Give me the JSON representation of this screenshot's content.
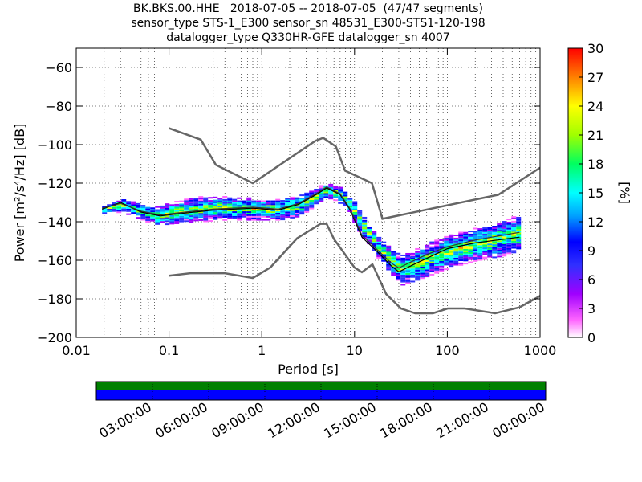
{
  "title": {
    "line1": "BK.BKS.00.HHE   2018-07-05 -- 2018-07-05  (47/47 segments)",
    "line2": "sensor_type STS-1_E300 sensor_sn 48531_E300-STS1-120-198",
    "line3": "datalogger_type Q330HR-GFE datalogger_sn 4007"
  },
  "chart_data": {
    "type": "heatmap",
    "xlabel": "Period [s]",
    "ylabel": "Power [m²/s⁴/Hz] [dB]",
    "xscale": "log",
    "xlim": [
      0.01,
      1000
    ],
    "ylim": [
      -200,
      -50
    ],
    "x_ticks": [
      0.01,
      0.1,
      1,
      10,
      100,
      1000
    ],
    "x_tick_labels": [
      "0.01",
      "0.1",
      "1",
      "10",
      "100",
      "1000"
    ],
    "y_ticks": [
      -200,
      -180,
      -160,
      -140,
      -120,
      -100,
      -80,
      -60
    ],
    "y_tick_labels": [
      "−200",
      "−180",
      "−160",
      "−140",
      "−120",
      "−100",
      "−80",
      "−60"
    ],
    "grid": true,
    "colorbar": {
      "label": "[%]",
      "min": 0,
      "max": 30,
      "ticks": [
        "0",
        "3",
        "6",
        "9",
        "12",
        "15",
        "18",
        "21",
        "24",
        "27",
        "30"
      ]
    },
    "series": [
      {
        "name": "NHNM",
        "color": "#666666",
        "points": [
          [
            0.1,
            -91.5
          ],
          [
            0.22,
            -97.4
          ],
          [
            0.32,
            -110.5
          ],
          [
            0.8,
            -120
          ],
          [
            3.8,
            -98
          ],
          [
            4.6,
            -96.5
          ],
          [
            6.3,
            -101
          ],
          [
            7.9,
            -113.5
          ],
          [
            15.4,
            -120
          ],
          [
            20,
            -138.5
          ],
          [
            354.8,
            -126
          ],
          [
            1000,
            -112
          ]
        ]
      },
      {
        "name": "NLNM",
        "color": "#666666",
        "points": [
          [
            0.1,
            -168
          ],
          [
            0.17,
            -166.7
          ],
          [
            0.4,
            -166.7
          ],
          [
            0.8,
            -169.2
          ],
          [
            1.24,
            -163.7
          ],
          [
            2.4,
            -148.6
          ],
          [
            4.3,
            -141.1
          ],
          [
            5,
            -141.1
          ],
          [
            6,
            -149
          ],
          [
            10,
            -163.8
          ],
          [
            12,
            -166.2
          ],
          [
            15.6,
            -162.1
          ],
          [
            21.9,
            -177.5
          ],
          [
            31.6,
            -185
          ],
          [
            45,
            -187.5
          ],
          [
            70,
            -187.5
          ],
          [
            101,
            -185
          ],
          [
            154,
            -185
          ],
          [
            328,
            -187.5
          ],
          [
            600,
            -184.4
          ],
          [
            1000,
            -178.5
          ]
        ]
      },
      {
        "name": "mode",
        "color": "#000000",
        "points": [
          [
            0.019,
            -133.5
          ],
          [
            0.03,
            -130
          ],
          [
            0.05,
            -135
          ],
          [
            0.08,
            -137
          ],
          [
            0.15,
            -135.5
          ],
          [
            0.3,
            -134
          ],
          [
            0.8,
            -133
          ],
          [
            1.5,
            -134
          ],
          [
            2.5,
            -131
          ],
          [
            4,
            -125.5
          ],
          [
            5,
            -122.5
          ],
          [
            7,
            -126
          ],
          [
            9,
            -134
          ],
          [
            12,
            -148
          ],
          [
            18,
            -156
          ],
          [
            25,
            -163
          ],
          [
            30,
            -166
          ],
          [
            40,
            -163
          ],
          [
            60,
            -159
          ],
          [
            100,
            -154
          ],
          [
            200,
            -151
          ],
          [
            600,
            -148
          ]
        ]
      },
      {
        "name": "mean",
        "color": "#333333",
        "points": [
          [
            0.019,
            -133
          ],
          [
            0.03,
            -130.5
          ],
          [
            0.05,
            -134.5
          ],
          [
            0.08,
            -136.5
          ],
          [
            0.15,
            -135
          ],
          [
            0.3,
            -133.5
          ],
          [
            0.8,
            -132.5
          ],
          [
            1.5,
            -133.5
          ],
          [
            2.5,
            -130.5
          ],
          [
            4,
            -125
          ],
          [
            5,
            -122
          ],
          [
            7,
            -125.5
          ],
          [
            9,
            -133.5
          ],
          [
            12,
            -147
          ],
          [
            18,
            -155
          ],
          [
            25,
            -161.5
          ],
          [
            30,
            -164
          ],
          [
            40,
            -161
          ],
          [
            60,
            -157
          ],
          [
            100,
            -153
          ],
          [
            200,
            -149.5
          ],
          [
            600,
            -145.5
          ]
        ]
      }
    ],
    "density_band": [
      [
        0.019,
        -135.5,
        -131.5
      ],
      [
        0.03,
        -135,
        -128
      ],
      [
        0.05,
        -139,
        -131
      ],
      [
        0.07,
        -142,
        -132
      ],
      [
        0.1,
        -141,
        -130
      ],
      [
        0.2,
        -140,
        -127
      ],
      [
        0.4,
        -139,
        -127
      ],
      [
        0.8,
        -139,
        -128
      ],
      [
        1.5,
        -139,
        -128
      ],
      [
        2.5,
        -137,
        -126
      ],
      [
        3.5,
        -132,
        -123
      ],
      [
        4.5,
        -128,
        -120
      ],
      [
        5.5,
        -128,
        -120.5
      ],
      [
        7,
        -131,
        -122
      ],
      [
        9,
        -138,
        -128
      ],
      [
        11,
        -146,
        -134
      ],
      [
        14,
        -152,
        -143
      ],
      [
        18,
        -160,
        -149
      ],
      [
        25,
        -168,
        -155
      ],
      [
        30,
        -173,
        -157
      ],
      [
        40,
        -171,
        -155
      ],
      [
        60,
        -168,
        -151
      ],
      [
        100,
        -164,
        -147
      ],
      [
        200,
        -160,
        -143
      ],
      [
        350,
        -158,
        -140
      ],
      [
        600,
        -156,
        -136
      ]
    ]
  },
  "timeline": {
    "colors": {
      "top": "#008000",
      "bottom": "#0000ff"
    },
    "labels": [
      "03:00:00",
      "06:00:00",
      "09:00:00",
      "12:00:00",
      "15:00:00",
      "18:00:00",
      "21:00:00",
      "00:00:00"
    ]
  }
}
